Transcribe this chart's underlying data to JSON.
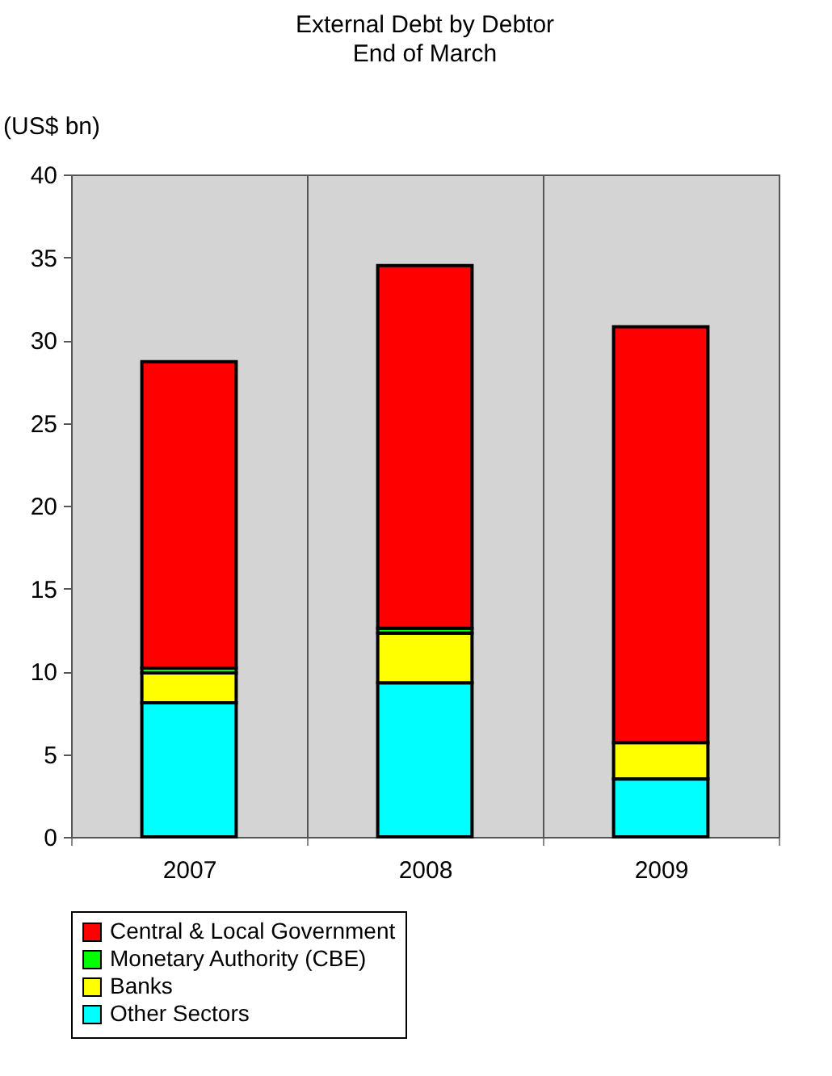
{
  "chart_data": {
    "type": "bar",
    "title": "External Debt by Debtor",
    "subtitle": "End of March",
    "ylabel": "(US$ bn)",
    "categories": [
      "2007",
      "2008",
      "2009"
    ],
    "stacked": true,
    "series": [
      {
        "name": "Other Sectors",
        "color": "#00ffff",
        "values": [
          8.1,
          9.3,
          3.5
        ]
      },
      {
        "name": "Banks",
        "color": "#ffff00",
        "values": [
          1.8,
          3.0,
          2.2
        ]
      },
      {
        "name": "Monetary Authority (CBE)",
        "color": "#00ff00",
        "values": [
          0.3,
          0.3,
          null
        ]
      },
      {
        "name": "Central & Local Government",
        "color": "#ff0000",
        "values": [
          18.5,
          21.9,
          25.1
        ]
      }
    ],
    "ylim": [
      0,
      40
    ],
    "yticks": [
      0,
      5,
      10,
      15,
      20,
      25,
      30,
      35,
      40
    ],
    "grid": "x",
    "legend": "bottom"
  }
}
